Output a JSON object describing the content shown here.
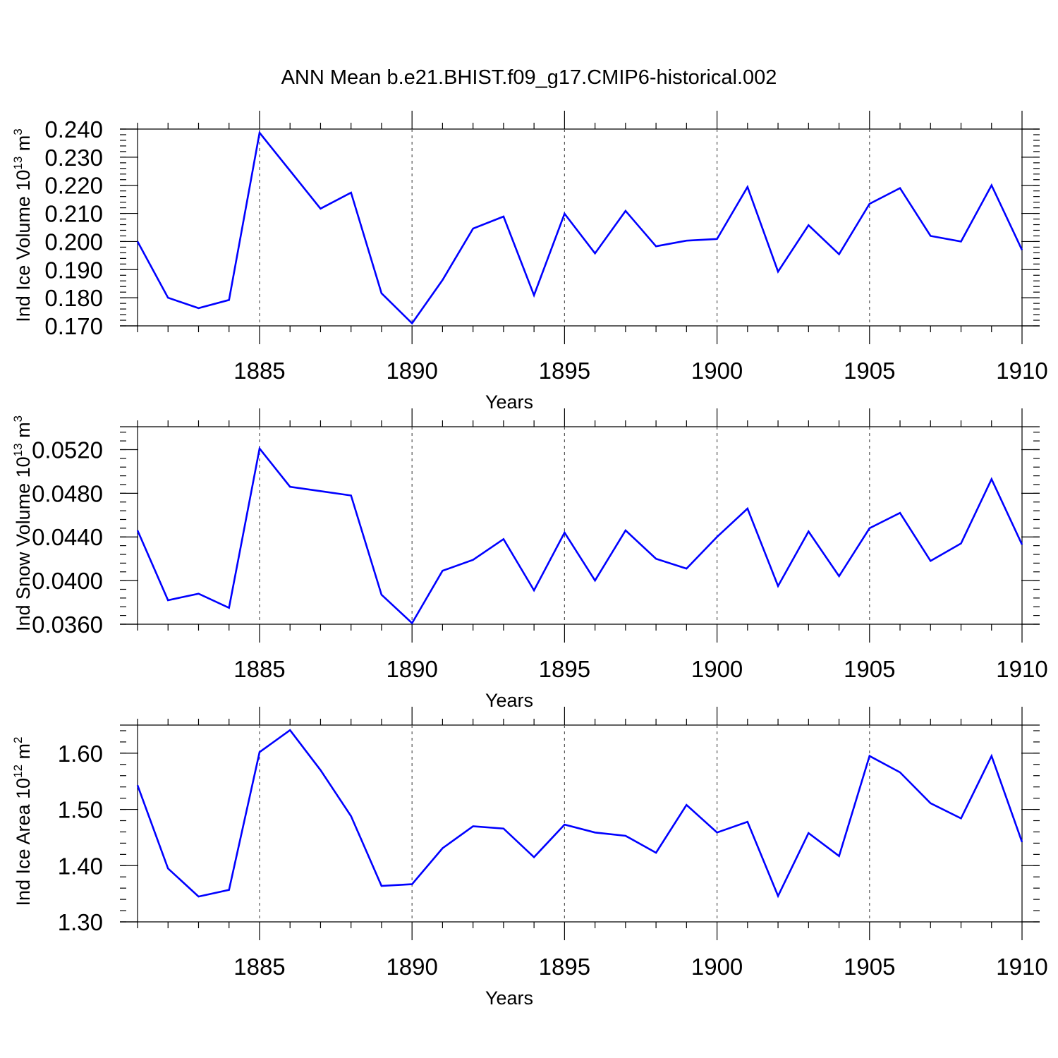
{
  "figure": {
    "title": "ANN Mean b.e21.BHIST.f09_g17.CMIP6-historical.002"
  },
  "colors": {
    "line": "#0000ff",
    "axes": "#000000",
    "grid": "#555555"
  },
  "chart_data": [
    {
      "type": "line",
      "title": "",
      "xlabel": "Years",
      "ylabel": "Ind Ice Volume 10",
      "ylabel_exp": "13",
      "ylabel_unit": "m",
      "ylabel_unit_exp": "3",
      "xlim": [
        1881,
        1910
      ],
      "ylim": [
        0.17,
        0.24
      ],
      "xticks": [
        1885,
        1890,
        1895,
        1900,
        1905,
        1910
      ],
      "yticks": [
        0.17,
        0.18,
        0.19,
        0.2,
        0.21,
        0.22,
        0.23,
        0.24
      ],
      "ytick_labels": [
        "0.170",
        "0.180",
        "0.190",
        "0.200",
        "0.210",
        "0.220",
        "0.230",
        "0.240"
      ],
      "y_minor_step": 0.002,
      "grid": "vertical dashed at major x ticks",
      "x": [
        1881,
        1882,
        1883,
        1884,
        1885,
        1886,
        1887,
        1888,
        1889,
        1890,
        1891,
        1892,
        1893,
        1894,
        1895,
        1896,
        1897,
        1898,
        1899,
        1900,
        1901,
        1902,
        1903,
        1904,
        1905,
        1906,
        1907,
        1908,
        1909,
        1910
      ],
      "series": [
        {
          "values": [
            0.2,
            0.18,
            0.1763,
            0.1792,
            0.2387,
            0.2252,
            0.2117,
            0.2174,
            0.1816,
            0.1709,
            0.1863,
            0.2046,
            0.2089,
            0.1809,
            0.2099,
            0.1958,
            0.2109,
            0.1983,
            0.2003,
            0.2009,
            0.2194,
            0.1893,
            0.2058,
            0.1955,
            0.2134,
            0.219,
            0.202,
            0.2,
            0.22,
            0.197
          ]
        }
      ]
    },
    {
      "type": "line",
      "title": "",
      "xlabel": "Years",
      "ylabel": "Ind Snow Volume 10",
      "ylabel_exp": "13",
      "ylabel_unit": "m",
      "ylabel_unit_exp": "3",
      "xlim": [
        1881,
        1910
      ],
      "ylim": [
        0.036,
        0.0541
      ],
      "xticks": [
        1885,
        1890,
        1895,
        1900,
        1905,
        1910
      ],
      "yticks": [
        0.036,
        0.04,
        0.044,
        0.048,
        0.052
      ],
      "ytick_labels": [
        "0.0360",
        "0.0400",
        "0.0440",
        "0.0480",
        "0.0520"
      ],
      "y_minor_step": 0.0008,
      "grid": "vertical dashed at major x ticks",
      "x": [
        1881,
        1882,
        1883,
        1884,
        1885,
        1886,
        1887,
        1888,
        1889,
        1890,
        1891,
        1892,
        1893,
        1894,
        1895,
        1896,
        1897,
        1898,
        1899,
        1900,
        1901,
        1902,
        1903,
        1904,
        1905,
        1906,
        1907,
        1908,
        1909,
        1910
      ],
      "series": [
        {
          "values": [
            0.0446,
            0.0382,
            0.0388,
            0.0375,
            0.0521,
            0.0486,
            0.0482,
            0.0478,
            0.0387,
            0.0361,
            0.0409,
            0.0419,
            0.0438,
            0.0391,
            0.0444,
            0.04,
            0.0446,
            0.042,
            0.0411,
            0.044,
            0.0466,
            0.0395,
            0.0445,
            0.0404,
            0.0448,
            0.0462,
            0.0418,
            0.0434,
            0.0493,
            0.0433
          ]
        }
      ]
    },
    {
      "type": "line",
      "title": "",
      "xlabel": "Years",
      "ylabel": "Ind Ice Area 10",
      "ylabel_exp": "12",
      "ylabel_unit": "m",
      "ylabel_unit_exp": "2",
      "xlim": [
        1881,
        1910
      ],
      "ylim": [
        1.3,
        1.65
      ],
      "xticks": [
        1885,
        1890,
        1895,
        1900,
        1905,
        1910
      ],
      "yticks": [
        1.3,
        1.4,
        1.5,
        1.6
      ],
      "ytick_labels": [
        "1.30",
        "1.40",
        "1.50",
        "1.60"
      ],
      "y_minor_step": 0.02,
      "grid": "vertical dashed at major x ticks",
      "x": [
        1881,
        1882,
        1883,
        1884,
        1885,
        1886,
        1887,
        1888,
        1889,
        1890,
        1891,
        1892,
        1893,
        1894,
        1895,
        1896,
        1897,
        1898,
        1899,
        1900,
        1901,
        1902,
        1903,
        1904,
        1905,
        1906,
        1907,
        1908,
        1909,
        1910
      ],
      "series": [
        {
          "values": [
            1.543,
            1.395,
            1.345,
            1.357,
            1.602,
            1.641,
            1.57,
            1.488,
            1.364,
            1.367,
            1.431,
            1.47,
            1.466,
            1.415,
            1.473,
            1.459,
            1.453,
            1.423,
            1.508,
            1.459,
            1.478,
            1.346,
            1.458,
            1.417,
            1.595,
            1.566,
            1.511,
            1.484,
            1.595,
            1.442
          ]
        }
      ]
    }
  ]
}
